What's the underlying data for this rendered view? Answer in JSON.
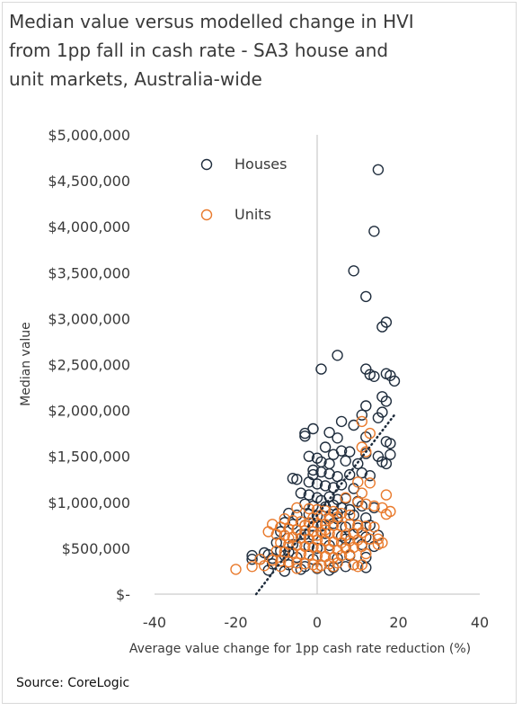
{
  "title": "Median value versus modelled change in HVI from 1pp fall in cash rate - SA3 house and unit markets, Australia-wide",
  "source": "Source: CoreLogic",
  "chart_data": {
    "type": "scatter",
    "title": "Median value versus modelled change in HVI from 1pp fall in cash rate - SA3 house and unit markets, Australia-wide",
    "xlabel": "Average value change for 1pp cash rate reduction (%)",
    "ylabel": "Median value",
    "xlim": [
      -40,
      40
    ],
    "ylim": [
      0,
      5000000
    ],
    "x_ticks": [
      "-40",
      "-20",
      "0",
      "20",
      "40"
    ],
    "y_ticks": [
      "$-",
      "$500,000",
      "$1,000,000",
      "$1,500,000",
      "$2,000,000",
      "$2,500,000",
      "$3,000,000",
      "$3,500,000",
      "$4,000,000",
      "$4,500,000",
      "$5,000,000"
    ],
    "legend_position": "top-left",
    "grid": false,
    "colors": {
      "houses": "#1f2d3d",
      "units": "#e97a2c",
      "axis": "#bfbfbf",
      "trend": "#1f2d3d"
    },
    "trendline": {
      "style": "dotted",
      "x": [
        -15,
        19
      ],
      "y": [
        0,
        1950000
      ]
    },
    "series": [
      {
        "name": "Houses",
        "marker": "open-circle",
        "points": [
          [
            15,
            4620000
          ],
          [
            14,
            3950000
          ],
          [
            9,
            3520000
          ],
          [
            12,
            3240000
          ],
          [
            17,
            2960000
          ],
          [
            16,
            2910000
          ],
          [
            5,
            2600000
          ],
          [
            1,
            2450000
          ],
          [
            12,
            2450000
          ],
          [
            13,
            2390000
          ],
          [
            17,
            2400000
          ],
          [
            18,
            2380000
          ],
          [
            19,
            2320000
          ],
          [
            14,
            2370000
          ],
          [
            16,
            2150000
          ],
          [
            17,
            2100000
          ],
          [
            12,
            2050000
          ],
          [
            16,
            1980000
          ],
          [
            11,
            1950000
          ],
          [
            15,
            1920000
          ],
          [
            6,
            1880000
          ],
          [
            9,
            1840000
          ],
          [
            -1,
            1800000
          ],
          [
            -3,
            1750000
          ],
          [
            -3,
            1720000
          ],
          [
            3,
            1760000
          ],
          [
            5,
            1700000
          ],
          [
            12,
            1710000
          ],
          [
            17,
            1660000
          ],
          [
            18,
            1640000
          ],
          [
            2,
            1600000
          ],
          [
            6,
            1560000
          ],
          [
            4,
            1520000
          ],
          [
            8,
            1550000
          ],
          [
            12,
            1530000
          ],
          [
            15,
            1500000
          ],
          [
            18,
            1520000
          ],
          [
            -2,
            1500000
          ],
          [
            0,
            1480000
          ],
          [
            1,
            1440000
          ],
          [
            3,
            1420000
          ],
          [
            7,
            1450000
          ],
          [
            10,
            1420000
          ],
          [
            16,
            1440000
          ],
          [
            17,
            1420000
          ],
          [
            -1,
            1350000
          ],
          [
            -1,
            1300000
          ],
          [
            1,
            1330000
          ],
          [
            3,
            1310000
          ],
          [
            5,
            1280000
          ],
          [
            8,
            1300000
          ],
          [
            11,
            1320000
          ],
          [
            13,
            1290000
          ],
          [
            -6,
            1260000
          ],
          [
            -5,
            1250000
          ],
          [
            -2,
            1220000
          ],
          [
            0,
            1200000
          ],
          [
            2,
            1180000
          ],
          [
            4,
            1160000
          ],
          [
            6,
            1190000
          ],
          [
            9,
            1150000
          ],
          [
            -4,
            1100000
          ],
          [
            -2,
            1080000
          ],
          [
            0,
            1050000
          ],
          [
            1,
            1020000
          ],
          [
            3,
            1060000
          ],
          [
            5,
            1030000
          ],
          [
            7,
            1040000
          ],
          [
            10,
            1010000
          ],
          [
            -3,
            980000
          ],
          [
            -1,
            960000
          ],
          [
            2,
            950000
          ],
          [
            4,
            970000
          ],
          [
            6,
            940000
          ],
          [
            8,
            920000
          ],
          [
            11,
            960000
          ],
          [
            14,
            940000
          ],
          [
            -7,
            880000
          ],
          [
            -5,
            860000
          ],
          [
            -2,
            870000
          ],
          [
            0,
            850000
          ],
          [
            3,
            840000
          ],
          [
            5,
            880000
          ],
          [
            9,
            860000
          ],
          [
            12,
            830000
          ],
          [
            -8,
            780000
          ],
          [
            -6,
            760000
          ],
          [
            -3,
            750000
          ],
          [
            1,
            740000
          ],
          [
            4,
            770000
          ],
          [
            7,
            730000
          ],
          [
            10,
            720000
          ],
          [
            13,
            750000
          ],
          [
            -9,
            680000
          ],
          [
            -4,
            650000
          ],
          [
            -1,
            640000
          ],
          [
            2,
            660000
          ],
          [
            6,
            630000
          ],
          [
            9,
            650000
          ],
          [
            12,
            620000
          ],
          [
            15,
            640000
          ],
          [
            -10,
            560000
          ],
          [
            -6,
            540000
          ],
          [
            -2,
            520000
          ],
          [
            0,
            500000
          ],
          [
            3,
            530000
          ],
          [
            7,
            510000
          ],
          [
            11,
            540000
          ],
          [
            14,
            520000
          ],
          [
            -12,
            430000
          ],
          [
            -8,
            420000
          ],
          [
            -5,
            400000
          ],
          [
            -1,
            380000
          ],
          [
            2,
            410000
          ],
          [
            5,
            390000
          ],
          [
            8,
            420000
          ],
          [
            12,
            400000
          ],
          [
            -16,
            420000
          ],
          [
            -14,
            380000
          ],
          [
            -11,
            330000
          ],
          [
            -7,
            320000
          ],
          [
            -3,
            300000
          ],
          [
            1,
            310000
          ],
          [
            4,
            290000
          ],
          [
            9,
            320000
          ],
          [
            -12,
            260000
          ],
          [
            -8,
            250000
          ],
          [
            -4,
            270000
          ],
          [
            0,
            280000
          ],
          [
            3,
            260000
          ],
          [
            7,
            300000
          ],
          [
            12,
            290000
          ],
          [
            -16,
            380000
          ],
          [
            -11,
            390000
          ],
          [
            -7,
            460000
          ],
          [
            -13,
            450000
          ],
          [
            -9,
            470000
          ],
          [
            -1,
            740000
          ],
          [
            -3,
            650000
          ],
          [
            5,
            820000
          ],
          [
            7,
            600000
          ]
        ]
      },
      {
        "name": "Units",
        "marker": "open-circle",
        "points": [
          [
            11,
            1880000
          ],
          [
            13,
            1750000
          ],
          [
            11,
            1600000
          ],
          [
            12,
            1550000
          ],
          [
            10,
            1220000
          ],
          [
            13,
            1210000
          ],
          [
            11,
            1100000
          ],
          [
            17,
            1080000
          ],
          [
            7,
            1050000
          ],
          [
            10,
            1000000
          ],
          [
            12,
            980000
          ],
          [
            14,
            960000
          ],
          [
            16,
            940000
          ],
          [
            18,
            900000
          ],
          [
            17,
            870000
          ],
          [
            -5,
            940000
          ],
          [
            -2,
            930000
          ],
          [
            0,
            920000
          ],
          [
            2,
            910000
          ],
          [
            4,
            900000
          ],
          [
            6,
            880000
          ],
          [
            8,
            860000
          ],
          [
            -8,
            820000
          ],
          [
            -6,
            800000
          ],
          [
            -4,
            790000
          ],
          [
            -2,
            780000
          ],
          [
            0,
            770000
          ],
          [
            2,
            760000
          ],
          [
            4,
            750000
          ],
          [
            6,
            740000
          ],
          [
            8,
            760000
          ],
          [
            10,
            750000
          ],
          [
            12,
            740000
          ],
          [
            14,
            730000
          ],
          [
            -11,
            760000
          ],
          [
            -9,
            730000
          ],
          [
            -7,
            710000
          ],
          [
            -5,
            700000
          ],
          [
            -3,
            690000
          ],
          [
            -1,
            680000
          ],
          [
            1,
            670000
          ],
          [
            3,
            660000
          ],
          [
            5,
            650000
          ],
          [
            7,
            640000
          ],
          [
            9,
            660000
          ],
          [
            11,
            670000
          ],
          [
            -12,
            680000
          ],
          [
            -10,
            650000
          ],
          [
            -8,
            640000
          ],
          [
            -6,
            620000
          ],
          [
            -4,
            610000
          ],
          [
            -2,
            600000
          ],
          [
            0,
            590000
          ],
          [
            2,
            580000
          ],
          [
            4,
            570000
          ],
          [
            6,
            560000
          ],
          [
            8,
            580000
          ],
          [
            10,
            590000
          ],
          [
            13,
            600000
          ],
          [
            15,
            600000
          ],
          [
            -9,
            560000
          ],
          [
            -7,
            540000
          ],
          [
            -5,
            530000
          ],
          [
            -3,
            520000
          ],
          [
            -1,
            510000
          ],
          [
            1,
            500000
          ],
          [
            3,
            490000
          ],
          [
            5,
            480000
          ],
          [
            7,
            500000
          ],
          [
            9,
            510000
          ],
          [
            11,
            520000
          ],
          [
            -10,
            470000
          ],
          [
            -8,
            460000
          ],
          [
            -6,
            450000
          ],
          [
            -4,
            440000
          ],
          [
            -2,
            430000
          ],
          [
            0,
            420000
          ],
          [
            2,
            410000
          ],
          [
            4,
            400000
          ],
          [
            6,
            420000
          ],
          [
            8,
            430000
          ],
          [
            12,
            440000
          ],
          [
            -14,
            380000
          ],
          [
            -11,
            370000
          ],
          [
            -9,
            360000
          ],
          [
            -7,
            350000
          ],
          [
            -5,
            340000
          ],
          [
            -3,
            330000
          ],
          [
            -1,
            320000
          ],
          [
            1,
            310000
          ],
          [
            3,
            330000
          ],
          [
            5,
            340000
          ],
          [
            9,
            320000
          ],
          [
            11,
            320000
          ],
          [
            -20,
            270000
          ],
          [
            -16,
            300000
          ],
          [
            -13,
            310000
          ],
          [
            -9,
            300000
          ],
          [
            -5,
            280000
          ],
          [
            0,
            290000
          ],
          [
            4,
            300000
          ],
          [
            10,
            300000
          ],
          [
            -7,
            610000
          ],
          [
            -3,
            750000
          ],
          [
            1,
            860000
          ],
          [
            3,
            820000
          ],
          [
            5,
            840000
          ],
          [
            -1,
            830000
          ],
          [
            2,
            700000
          ],
          [
            0,
            640000
          ],
          [
            16,
            560000
          ],
          [
            15,
            540000
          ]
        ]
      }
    ]
  }
}
